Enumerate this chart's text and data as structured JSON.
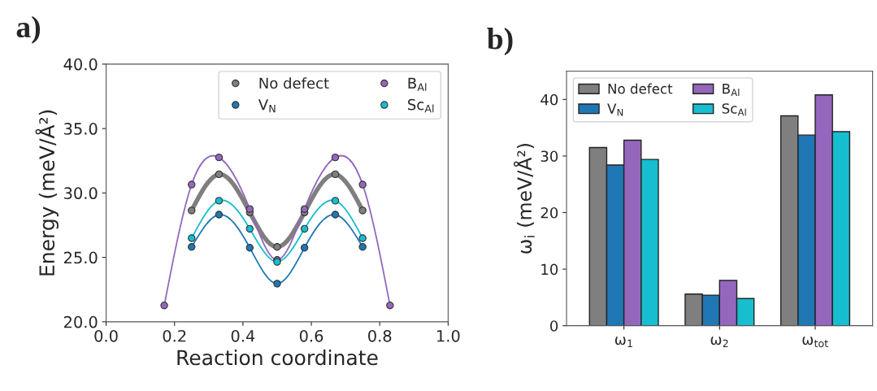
{
  "chart_data": [
    {
      "type": "line",
      "title": "a)",
      "xlabel": "Reaction coordinate",
      "ylabel": "Energy (meV/Å²)",
      "xlim": [
        0,
        1
      ],
      "xticks": [
        {
          "value": 0,
          "label": "0.0"
        },
        0.2,
        0.4,
        0.6,
        0.8,
        {
          "value": 1,
          "label": "1.0"
        }
      ],
      "ylim": [
        20,
        40
      ],
      "yticks": [
        {
          "value": 20,
          "label": "20.0"
        },
        {
          "value": 25,
          "label": "25.0"
        },
        {
          "value": 30,
          "label": "30.0"
        },
        {
          "value": 35,
          "label": "35.0"
        },
        {
          "value": 40,
          "label": "40.0"
        }
      ],
      "marker": "circle",
      "legend": "top right",
      "grid": false,
      "series": [
        {
          "name": "No defect",
          "color": "#7f7f7f",
          "x": [
            0.25,
            0.33,
            0.42,
            0.5,
            0.58,
            0.67,
            0.75
          ],
          "values": [
            28.64,
            31.45,
            28.49,
            25.81,
            28.49,
            31.45,
            28.64
          ]
        },
        {
          "name": "V$_{N}$",
          "color": "#1f77b4",
          "x": [
            0.25,
            0.33,
            0.42,
            0.5,
            0.58,
            0.67,
            0.75
          ],
          "values": [
            25.81,
            28.32,
            25.75,
            22.96,
            25.75,
            28.32,
            25.81
          ]
        },
        {
          "name": "B$_{Al}$",
          "color": "#9467bd",
          "x": [
            0.17,
            0.25,
            0.33,
            0.42,
            0.5,
            0.58,
            0.67,
            0.75,
            0.83
          ],
          "values": [
            21.27,
            30.65,
            32.76,
            28.75,
            24.8,
            28.75,
            32.76,
            30.65,
            21.27
          ]
        },
        {
          "name": "Sc$_{Al}$",
          "color": "#17becf",
          "x": [
            0.25,
            0.33,
            0.42,
            0.5,
            0.58,
            0.67,
            0.75
          ],
          "values": [
            26.49,
            29.4,
            27.22,
            24.65,
            27.22,
            29.4,
            26.49
          ]
        }
      ]
    },
    {
      "type": "bar",
      "title": "b)",
      "ylabel": "ω$_{i}$ (meV/Å²)",
      "categories": [
        "ω$_{1}$",
        "ω$_{2}$",
        "ω$_{tot}$"
      ],
      "ylim": [
        0,
        45
      ],
      "yticks": [
        0,
        10,
        20,
        30,
        40
      ],
      "legend": "top left",
      "grid": false,
      "series": [
        {
          "name": "No defect",
          "color": "#7f7f7f",
          "values": [
            31.5,
            5.6,
            37.1
          ]
        },
        {
          "name": "V$_{N}$",
          "color": "#1f77b4",
          "values": [
            28.4,
            5.4,
            33.7
          ]
        },
        {
          "name": "B$_{Al}$",
          "color": "#9467bd",
          "values": [
            32.8,
            8.0,
            40.8
          ]
        },
        {
          "name": "Sc$_{Al}$",
          "color": "#17becf",
          "values": [
            29.4,
            4.8,
            34.3
          ]
        }
      ]
    }
  ]
}
